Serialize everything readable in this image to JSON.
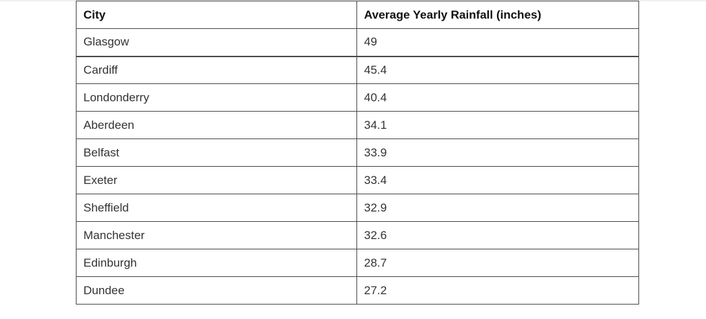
{
  "chart_data": {
    "type": "table",
    "columns": [
      "City",
      "Average Yearly Rainfall (inches)"
    ],
    "rows": [
      [
        "Glasgow",
        "49"
      ],
      [
        "Cardiff",
        "45.4"
      ],
      [
        "Londonderry",
        "40.4"
      ],
      [
        "Aberdeen",
        "34.1"
      ],
      [
        "Belfast",
        "33.9"
      ],
      [
        "Exeter",
        "33.4"
      ],
      [
        "Sheffield",
        "32.9"
      ],
      [
        "Manchester",
        "32.6"
      ],
      [
        "Edinburgh",
        "28.7"
      ],
      [
        "Dundee",
        "27.2"
      ]
    ]
  }
}
